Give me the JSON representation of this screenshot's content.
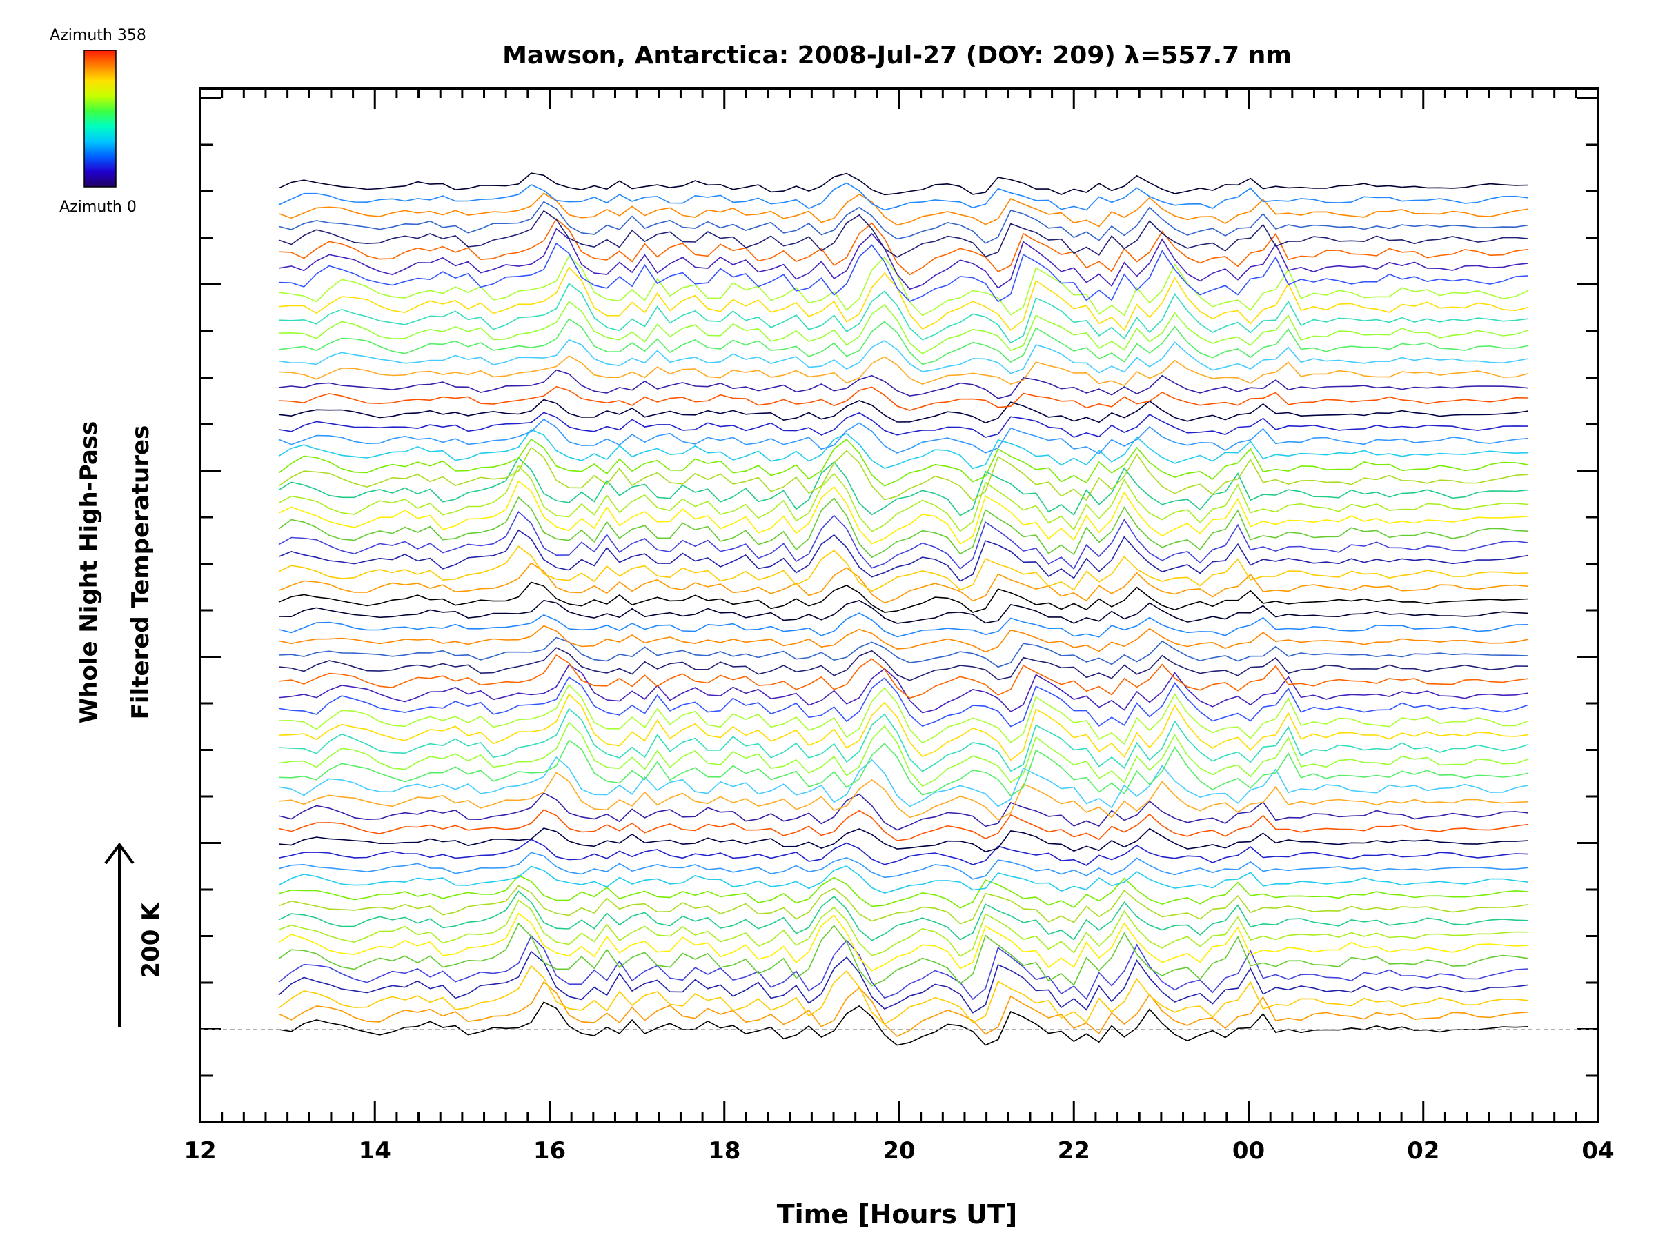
{
  "chart_data": {
    "type": "line",
    "title": "Mawson, Antarctica: 2008-Jul-27 (DOY: 209) λ=557.7 nm",
    "xlabel": "Time [Hours UT]",
    "ylabel_line1": "Whole Night High-Pass",
    "ylabel_line2": "Filtered Temperatures",
    "scale_label": "200 K",
    "colorbar": {
      "top_label": "Azimuth 358",
      "bottom_label": "Azimuth 0",
      "colors": [
        "#ff1a00",
        "#ff8000",
        "#ffe000",
        "#c8ff00",
        "#40ff40",
        "#00ffc0",
        "#00c8ff",
        "#0060ff",
        "#2000d0",
        "#200060"
      ]
    },
    "x_range_hours": [
      12,
      28
    ],
    "x_tick_labels": [
      "12",
      "14",
      "16",
      "18",
      "20",
      "22",
      "00",
      "02",
      "04"
    ],
    "y_tick_count": 23,
    "grid": false,
    "baseline": "dashed grey line at zero of the lowest trace",
    "n_traces": 64,
    "trace_spacing_K": 56,
    "series_note": "Stacked traces ordered by azimuth; each trace offset upward. Base high-pass temperature profile (K) sampled every ~0.2 h from 12.9 to 27.2 UT.",
    "x_start_hours": 12.9,
    "x_end_hours": 27.2,
    "base_profile_K": [
      0,
      -12,
      12,
      28,
      22,
      14,
      0,
      -8,
      -12,
      0,
      10,
      6,
      18,
      2,
      12,
      -15,
      -8,
      5,
      6,
      12,
      28,
      85,
      60,
      4,
      -14,
      -18,
      8,
      -14,
      30,
      -8,
      12,
      22,
      -4,
      -6,
      22,
      5,
      14,
      -14,
      -5,
      10,
      -22,
      -12,
      10,
      -30,
      -10,
      48,
      75,
      40,
      -18,
      -48,
      -35,
      -15,
      -5,
      12,
      5,
      -10,
      -48,
      -30,
      55,
      38,
      20,
      -5,
      0,
      -38,
      -20,
      -45,
      10,
      -22,
      6,
      62,
      20,
      -10,
      -28,
      -15,
      -8,
      -32,
      0,
      6,
      50,
      -10,
      0,
      -6,
      5,
      4,
      -3,
      -2,
      -6,
      10,
      2,
      8,
      -4,
      0,
      -2,
      6,
      2,
      -5,
      -3,
      5,
      8,
      10
    ],
    "azimuth_color_sequence": [
      "#000000",
      "#ff9900",
      "#ffcc00",
      "#2222aa",
      "#4444dd",
      "#66cc33",
      "#ffee00",
      "#aaee22",
      "#22cc88",
      "#aadd22",
      "#77ee00",
      "#22ccee",
      "#3399ff",
      "#2222cc",
      "#000044",
      "#ff5500",
      "#3322aa",
      "#ffaa22",
      "#44ccff",
      "#55ee66",
      "#99ff33",
      "#33ddbb",
      "#ffdd00",
      "#aaff33",
      "#3355ff",
      "#4422bb",
      "#ff6600",
      "#222277",
      "#3366cc",
      "#ff8800",
      "#2288ff",
      "#000033"
    ]
  }
}
